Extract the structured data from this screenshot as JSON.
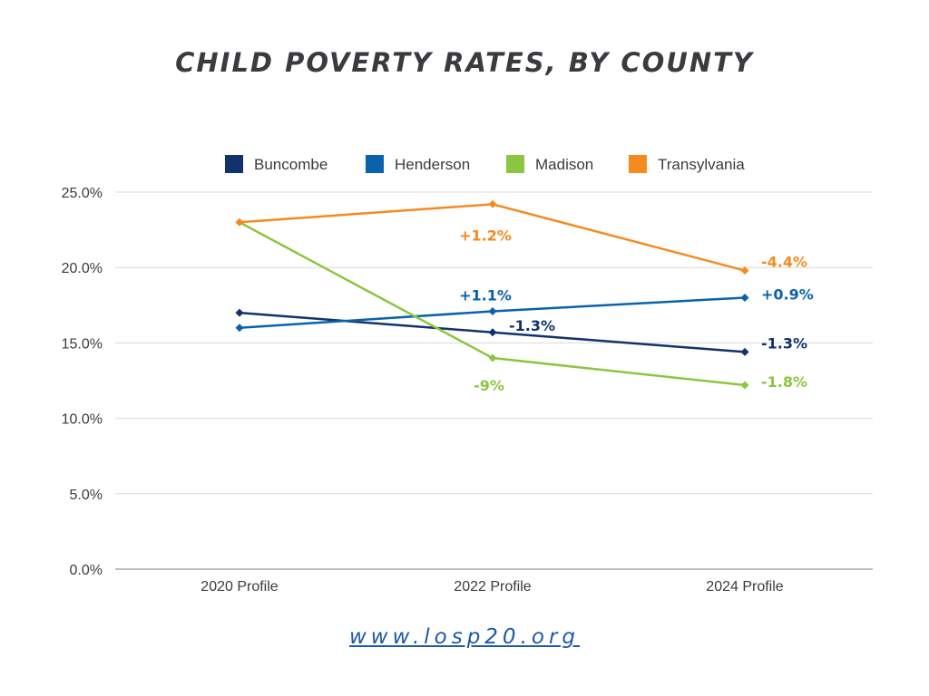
{
  "chart_data": {
    "type": "line",
    "title": "CHILD POVERTY RATES, BY COUNTY",
    "categories": [
      "2020 Profile",
      "2022 Profile",
      "2024 Profile"
    ],
    "y_ticks": [
      "0.0%",
      "5.0%",
      "10.0%",
      "15.0%",
      "20.0%",
      "25.0%"
    ],
    "y_tick_values": [
      0,
      5,
      10,
      15,
      20,
      25
    ],
    "ylim": [
      0,
      25
    ],
    "grid": true,
    "legend_position": "top",
    "series": [
      {
        "name": "Buncombe",
        "color": "#12326e",
        "values": [
          17.0,
          15.7,
          14.4
        ],
        "labels": [
          "",
          "-1.3%",
          "-1.3%"
        ]
      },
      {
        "name": "Henderson",
        "color": "#0a62ac",
        "values": [
          16.0,
          17.1,
          18.0
        ],
        "labels": [
          "",
          "+1.1%",
          "+0.9%"
        ]
      },
      {
        "name": "Madison",
        "color": "#8cc63f",
        "values": [
          23.0,
          14.0,
          12.2
        ],
        "labels": [
          "",
          "-9%",
          "-1.8%"
        ]
      },
      {
        "name": "Transylvania",
        "color": "#f58a1f",
        "values": [
          23.0,
          24.2,
          19.8
        ],
        "labels": [
          "",
          "+1.2%",
          "-4.4%"
        ]
      }
    ]
  },
  "footer": {
    "website": "www.losp20.org"
  }
}
